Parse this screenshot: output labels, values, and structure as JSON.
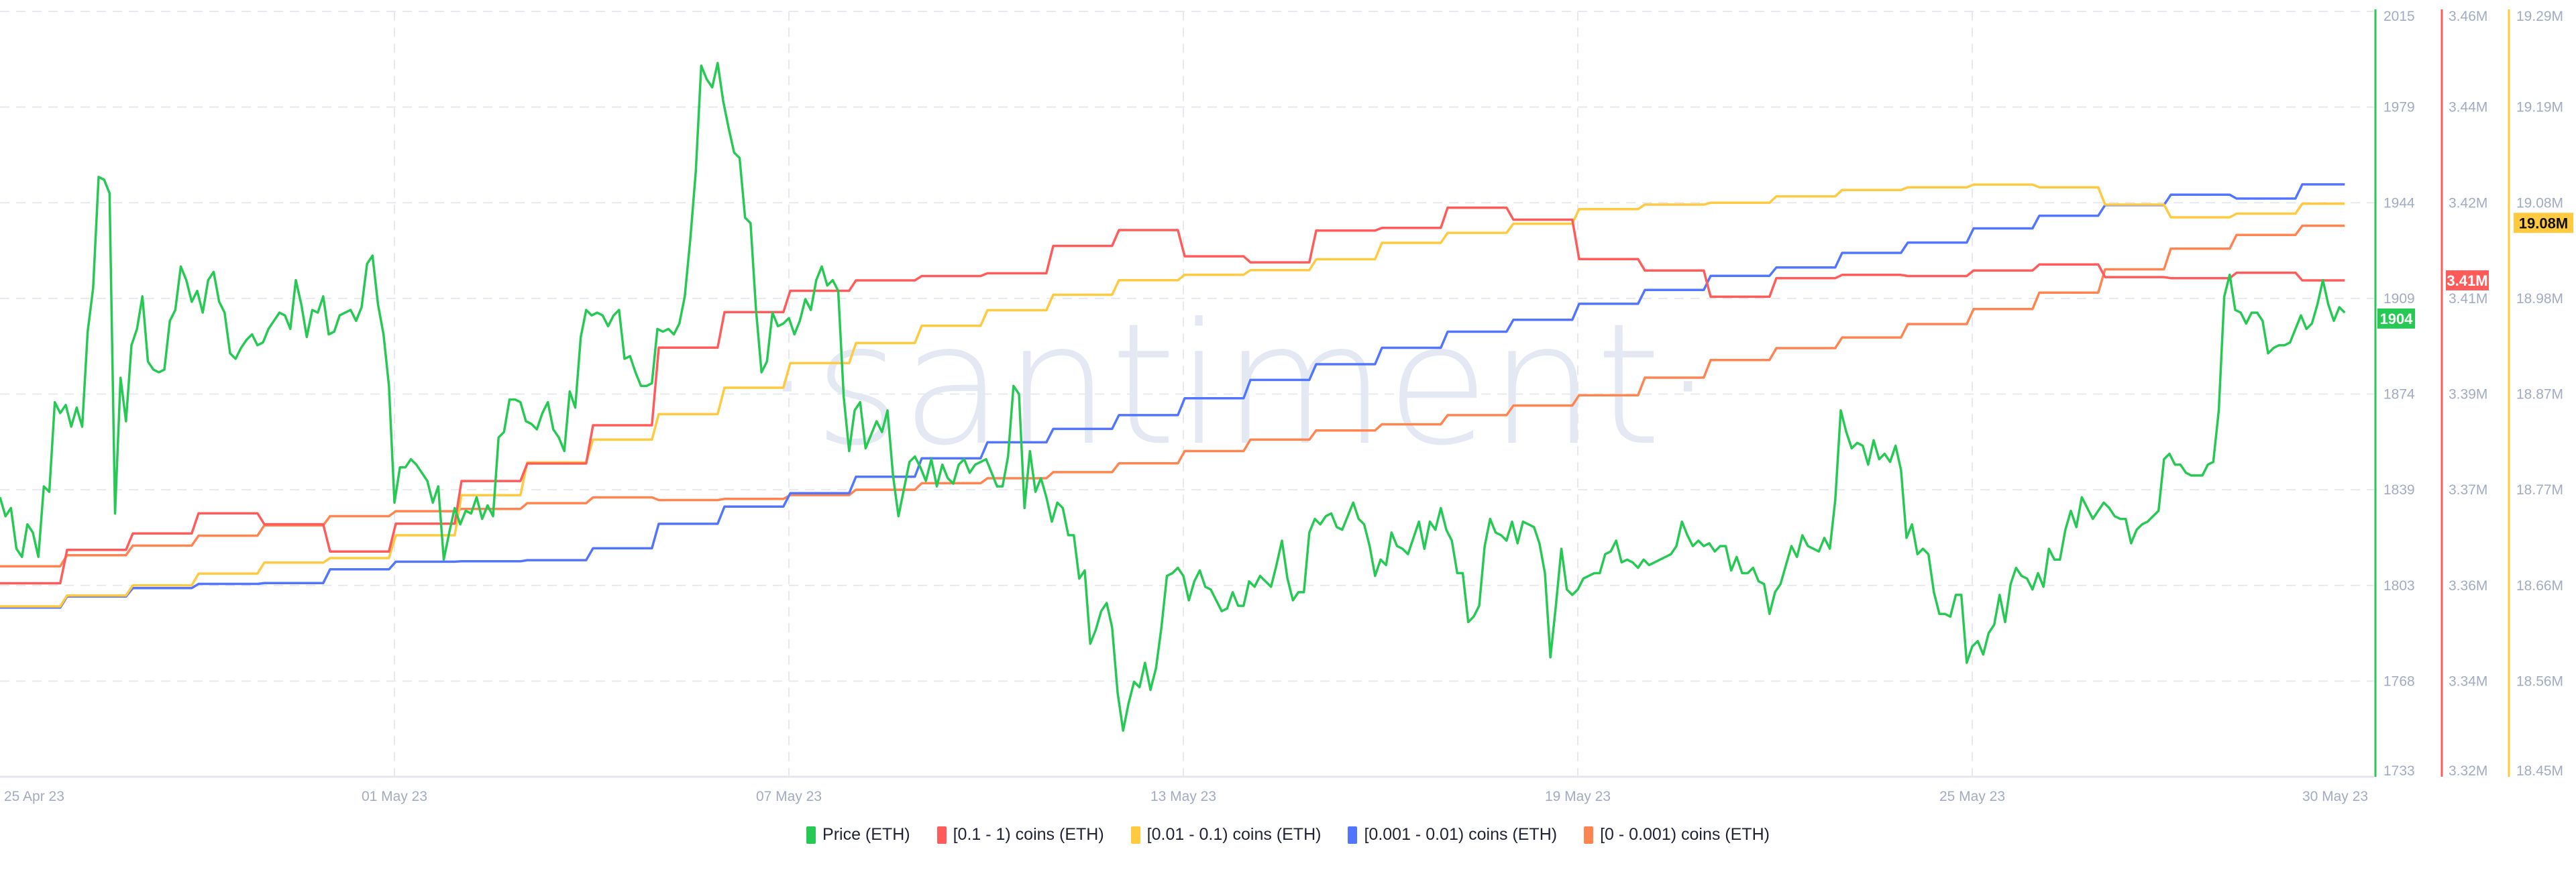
{
  "chart_data": {
    "type": "line",
    "watermark": "·santiment·",
    "grid": true,
    "legend_placement": "bottom",
    "x_axis": {
      "range": [
        "2023-04-25",
        "2023-05-30"
      ],
      "ticks": [
        "25 Apr 23",
        "01 May 23",
        "07 May 23",
        "13 May 23",
        "19 May 23",
        "25 May 23",
        "30 May 23"
      ]
    },
    "y_axes": {
      "price": {
        "ticks": [
          "2015",
          "1979",
          "1944",
          "1909",
          "1874",
          "1839",
          "1803",
          "1768",
          "1733"
        ],
        "ylim": [
          1733,
          2015
        ],
        "color": "#26c953",
        "visible": true
      },
      "red": {
        "ticks": [
          "3.46M",
          "3.44M",
          "3.42M",
          "3.41M",
          "3.39M",
          "3.37M",
          "3.36M",
          "3.34M",
          "3.32M"
        ],
        "ylim": [
          3.32,
          3.46
        ],
        "color": "#ff5b5b",
        "visible": true
      },
      "yellow": {
        "ticks": [
          "19.29M",
          "19.19M",
          "19.08M",
          "18.98M",
          "18.87M",
          "18.77M",
          "18.66M",
          "18.56M",
          "18.45M"
        ],
        "ylim": [
          18.45,
          19.29
        ],
        "color": "#ffc940",
        "visible": true
      },
      "blue": {
        "ylim": [
          1.2,
          1.4
        ],
        "visible": false
      },
      "orange": {
        "ylim": [
          0.15,
          0.17
        ],
        "visible": false
      }
    },
    "series": [
      {
        "name": "Price (ETH)",
        "color": "#26c953",
        "axis": "price",
        "current_label": "1904",
        "start": "2023-04-25 00:00",
        "interval_hours": 2,
        "values": [
          1836,
          1829,
          1832,
          1817,
          1814,
          1826,
          1823,
          1814,
          1840,
          1838,
          1871,
          1867,
          1870,
          1862,
          1869,
          1862,
          1897,
          1913,
          1954,
          1953,
          1948,
          1830,
          1880,
          1864,
          1892,
          1898,
          1910,
          1886,
          1883,
          1882,
          1883,
          1901,
          1905,
          1921,
          1916,
          1908,
          1912,
          1904,
          1916,
          1919,
          1908,
          1904,
          1889,
          1887,
          1891,
          1894,
          1896,
          1892,
          1893,
          1898,
          1901,
          1904,
          1903,
          1898,
          1916,
          1907,
          1895,
          1905,
          1904,
          1910,
          1896,
          1897,
          1903,
          1904,
          1905,
          1901,
          1906,
          1922,
          1925,
          1907,
          1896,
          1877,
          1834,
          1847,
          1847,
          1850,
          1848,
          1845,
          1842,
          1834,
          1840,
          1813,
          1823,
          1832,
          1826,
          1831,
          1830,
          1836,
          1828,
          1833,
          1829,
          1858,
          1860,
          1872,
          1872,
          1871,
          1864,
          1863,
          1861,
          1867,
          1871,
          1861,
          1858,
          1853,
          1875,
          1869,
          1895,
          1905,
          1903,
          1904,
          1903,
          1899,
          1903,
          1905,
          1887,
          1888,
          1882,
          1877,
          1877,
          1878,
          1898,
          1897,
          1898,
          1896,
          1900,
          1910,
          1931,
          1956,
          1995,
          1990,
          1987,
          1996,
          1982,
          1972,
          1963,
          1961,
          1939,
          1937,
          1905,
          1882,
          1886,
          1904,
          1899,
          1900,
          1902,
          1896,
          1901,
          1909,
          1905,
          1916,
          1921,
          1914,
          1916,
          1912,
          1873,
          1853,
          1868,
          1871,
          1854,
          1859,
          1864,
          1860,
          1868,
          1844,
          1829,
          1839,
          1849,
          1851,
          1847,
          1842,
          1850,
          1840,
          1848,
          1843,
          1841,
          1848,
          1850,
          1845,
          1848,
          1849,
          1850,
          1845,
          1840,
          1840,
          1851,
          1877,
          1874,
          1832,
          1853,
          1838,
          1843,
          1836,
          1827,
          1834,
          1832,
          1822,
          1822,
          1806,
          1809,
          1782,
          1787,
          1794,
          1797,
          1788,
          1764,
          1750,
          1760,
          1768,
          1766,
          1775,
          1765,
          1773,
          1788,
          1807,
          1808,
          1810,
          1807,
          1798,
          1805,
          1809,
          1803,
          1802,
          1798,
          1794,
          1795,
          1801,
          1796,
          1796,
          1805,
          1803,
          1807,
          1805,
          1803,
          1811,
          1820,
          1806,
          1798,
          1801,
          1801,
          1823,
          1828,
          1826,
          1829,
          1830,
          1825,
          1824,
          1829,
          1834,
          1828,
          1826,
          1818,
          1807,
          1813,
          1811,
          1823,
          1818,
          1817,
          1815,
          1821,
          1827,
          1817,
          1827,
          1824,
          1832,
          1824,
          1820,
          1808,
          1808,
          1790,
          1792,
          1796,
          1818,
          1828,
          1823,
          1822,
          1820,
          1827,
          1819,
          1827,
          1826,
          1825,
          1819,
          1808,
          1777,
          1796,
          1817,
          1802,
          1800,
          1802,
          1806,
          1807,
          1808,
          1808,
          1815,
          1816,
          1820,
          1812,
          1813,
          1812,
          1810,
          1813,
          1811,
          1812,
          1813,
          1814,
          1815,
          1818,
          1827,
          1822,
          1818,
          1820,
          1818,
          1819,
          1816,
          1818,
          1818,
          1809,
          1814,
          1808,
          1808,
          1810,
          1805,
          1804,
          1793,
          1801,
          1804,
          1811,
          1818,
          1814,
          1822,
          1818,
          1817,
          1816,
          1821,
          1817,
          1835,
          1868,
          1860,
          1854,
          1856,
          1855,
          1848,
          1857,
          1850,
          1852,
          1849,
          1855,
          1846,
          1821,
          1826,
          1815,
          1817,
          1815,
          1801,
          1793,
          1793,
          1792,
          1800,
          1800,
          1775,
          1781,
          1783,
          1778,
          1786,
          1789,
          1800,
          1790,
          1804,
          1810,
          1807,
          1806,
          1802,
          1808,
          1803,
          1817,
          1813,
          1813,
          1824,
          1831,
          1825,
          1836,
          1832,
          1828,
          1831,
          1834,
          1832,
          1829,
          1828,
          1828,
          1819,
          1824,
          1826,
          1827,
          1829,
          1831,
          1850,
          1852,
          1848,
          1848,
          1845,
          1844,
          1844,
          1844,
          1848,
          1849,
          1868,
          1910,
          1918,
          1905,
          1904,
          1900,
          1904,
          1904,
          1901,
          1889,
          1891,
          1892,
          1892,
          1893,
          1898,
          1903,
          1898,
          1900,
          1907,
          1916,
          1907,
          1901,
          1906,
          1904
        ]
      },
      {
        "name": "[0.1 - 1) coins (ETH)",
        "color": "#ff5b5b",
        "axis": "red",
        "current_label": "3.41M",
        "start": "2023-04-25",
        "interval_hours": 24,
        "values": [
          3.3554,
          3.3615,
          3.3645,
          3.3682,
          3.3662,
          3.3612,
          3.3663,
          3.3741,
          3.3773,
          3.3843,
          3.3985,
          3.405,
          3.4089,
          3.4108,
          3.4116,
          3.4121,
          3.4171,
          3.42,
          3.4152,
          3.4141,
          3.4199,
          3.4204,
          3.4241,
          3.4219,
          3.4147,
          3.4126,
          3.4078,
          3.4112,
          3.4118,
          3.4116,
          3.4126,
          3.4137,
          3.4114,
          3.4112,
          3.4122,
          3.4108
        ]
      },
      {
        "name": "[0.01 - 0.1) coins (ETH)",
        "color": "#ffc940",
        "axis": "yellow",
        "current_label": "19.08M",
        "start": "2023-04-25",
        "interval_hours": 24,
        "values": [
          18.637,
          18.649,
          18.66,
          18.673,
          18.685,
          18.69,
          18.715,
          18.759,
          18.795,
          18.82,
          18.848,
          18.877,
          18.904,
          18.926,
          18.945,
          18.962,
          18.979,
          18.995,
          19.001,
          19.006,
          19.018,
          19.036,
          19.047,
          19.057,
          19.073,
          19.078,
          19.08,
          19.087,
          19.094,
          19.097,
          19.1,
          19.097,
          19.078,
          19.064,
          19.068,
          19.079
        ]
      },
      {
        "name": "[0.001 - 0.01) coins (ETH)",
        "color": "#5275ff",
        "axis": "blue",
        "start": "2023-04-25",
        "interval_hours": 24,
        "values": [
          1.2442,
          1.2471,
          1.2493,
          1.2504,
          1.2506,
          1.2542,
          1.2562,
          1.2563,
          1.2566,
          1.2597,
          1.2661,
          1.2706,
          1.2741,
          1.2784,
          1.2832,
          1.2874,
          1.2909,
          1.2945,
          1.2989,
          1.3037,
          1.3078,
          1.3121,
          1.3163,
          1.3194,
          1.3236,
          1.3272,
          1.3309,
          1.3331,
          1.3369,
          1.3396,
          1.3433,
          1.3466,
          1.3494,
          1.3521,
          1.3511,
          1.3548
        ]
      },
      {
        "name": "[0 - 0.001) coins (ETH)",
        "color": "#ff8450",
        "axis": "orange",
        "start": "2023-04-25",
        "interval_hours": 24,
        "values": [
          0.1555,
          0.15579,
          0.15604,
          0.1563,
          0.15657,
          0.15681,
          0.15694,
          0.157,
          0.15715,
          0.1573,
          0.15723,
          0.15726,
          0.15736,
          0.1575,
          0.15767,
          0.1578,
          0.15796,
          0.15819,
          0.15851,
          0.15881,
          0.15905,
          0.15921,
          0.15945,
          0.1597,
          0.15997,
          0.16043,
          0.16089,
          0.1612,
          0.16148,
          0.16183,
          0.16222,
          0.16265,
          0.16326,
          0.1638,
          0.16416,
          0.1644
        ]
      }
    ]
  }
}
